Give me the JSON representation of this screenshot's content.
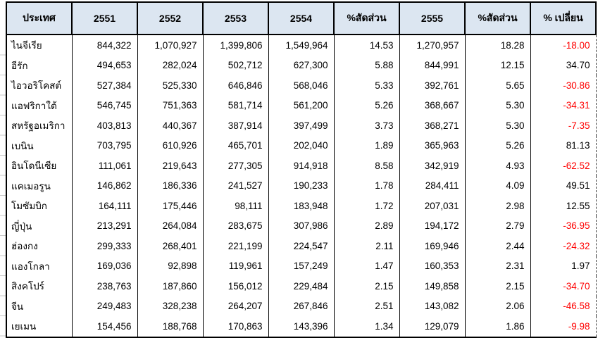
{
  "table": {
    "header": [
      "ประเทศ",
      "2551",
      "2552",
      "2553",
      "2554",
      "%สัดส่วน",
      "2555",
      "%สัดส่วน",
      "% เปลี่ยน"
    ],
    "rows": [
      [
        "ไนจีเรีย",
        "844,322",
        "1,070,927",
        "1,399,806",
        "1,549,964",
        "14.53",
        "1,270,957",
        "18.28",
        "-18.00"
      ],
      [
        "อีรัก",
        "494,653",
        "282,024",
        "502,712",
        "627,300",
        "5.88",
        "844,991",
        "12.15",
        "34.70"
      ],
      [
        "ไอวอริโคสต์",
        "527,384",
        "525,330",
        "646,846",
        "568,046",
        "5.33",
        "392,761",
        "5.65",
        "-30.86"
      ],
      [
        "แอฟริกาใต้",
        "546,745",
        "751,363",
        "581,714",
        "561,200",
        "5.26",
        "368,667",
        "5.30",
        "-34.31"
      ],
      [
        "สหรัฐอเมริกา",
        "403,813",
        "440,367",
        "387,914",
        "397,499",
        "3.73",
        "368,271",
        "5.30",
        "-7.35"
      ],
      [
        "เบนิน",
        "703,795",
        "610,926",
        "465,701",
        "202,040",
        "1.89",
        "365,963",
        "5.26",
        "81.13"
      ],
      [
        "อินโดนีเซีย",
        "111,061",
        "219,643",
        "277,305",
        "914,918",
        "8.58",
        "342,919",
        "4.93",
        "-62.52"
      ],
      [
        "แคเมอรูน",
        "146,862",
        "186,336",
        "241,527",
        "190,233",
        "1.78",
        "284,411",
        "4.09",
        "49.51"
      ],
      [
        "โมซัมบิก",
        "164,111",
        "175,446",
        "98,111",
        "183,948",
        "1.72",
        "207,031",
        "2.98",
        "12.55"
      ],
      [
        "ญี่ปุ่น",
        "213,291",
        "264,084",
        "283,675",
        "307,986",
        "2.89",
        "194,172",
        "2.79",
        "-36.95"
      ],
      [
        "ฮ่องกง",
        "299,333",
        "268,401",
        "221,199",
        "224,547",
        "2.11",
        "169,946",
        "2.44",
        "-24.32"
      ],
      [
        "แองโกลา",
        "169,036",
        "92,898",
        "119,961",
        "157,249",
        "1.47",
        "160,353",
        "2.31",
        "1.97"
      ],
      [
        "สิงคโปร์",
        "238,763",
        "187,860",
        "156,012",
        "229,484",
        "2.15",
        "149,858",
        "2.15",
        "-34.70"
      ],
      [
        "จีน",
        "249,483",
        "328,238",
        "264,207",
        "267,846",
        "2.51",
        "143,082",
        "2.06",
        "-46.58"
      ],
      [
        "เยเมน",
        "154,456",
        "188,768",
        "170,863",
        "143,396",
        "1.34",
        "129,079",
        "1.86",
        "-9.98"
      ]
    ]
  },
  "colors": {
    "header_bg": "#dce6f1",
    "border": "#000000",
    "negative_text": "#ff0000",
    "positive_text": "#000000"
  }
}
